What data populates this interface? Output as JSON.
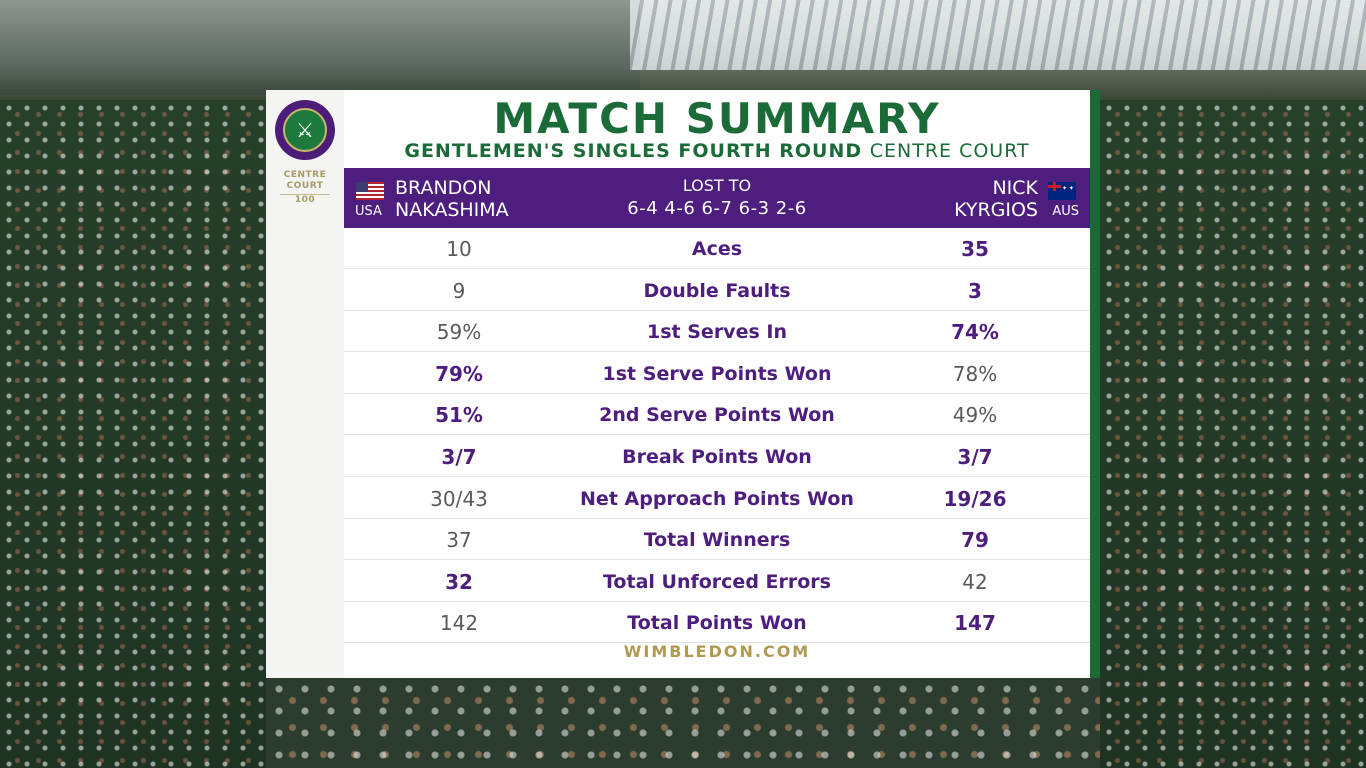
{
  "title": "MATCH SUMMARY",
  "subtitle": {
    "event": "GENTLEMEN'S SINGLES FOURTH ROUND",
    "venue": "CENTRE COURT"
  },
  "branding": {
    "logo_icon": "wimbledon-crossed-rackets-logo",
    "centre_court_line1": "CENTRE",
    "centre_court_line2": "COURT",
    "centre_court_line3": "100"
  },
  "player_left": {
    "first_name": "BRANDON",
    "last_name": "NAKASHIMA",
    "country": "USA",
    "flag_icon": "usa-flag-icon"
  },
  "player_right": {
    "first_name": "NICK",
    "last_name": "KYRGIOS",
    "country": "AUS",
    "flag_icon": "australia-flag-icon"
  },
  "result": {
    "label": "LOST TO",
    "score": "6-4 4-6 6-7 6-3 2-6"
  },
  "stats": [
    {
      "label": "Aces",
      "left": "10",
      "right": "35",
      "left_bold": false,
      "right_bold": true
    },
    {
      "label": "Double Faults",
      "left": "9",
      "right": "3",
      "left_bold": false,
      "right_bold": true
    },
    {
      "label": "1st Serves In",
      "left": "59%",
      "right": "74%",
      "left_bold": false,
      "right_bold": true
    },
    {
      "label": "1st Serve Points Won",
      "left": "79%",
      "right": "78%",
      "left_bold": true,
      "right_bold": false
    },
    {
      "label": "2nd Serve Points Won",
      "left": "51%",
      "right": "49%",
      "left_bold": true,
      "right_bold": false
    },
    {
      "label": "Break Points Won",
      "left": "3/7",
      "right": "3/7",
      "left_bold": true,
      "right_bold": true
    },
    {
      "label": "Net Approach Points Won",
      "left": "30/43",
      "right": "19/26",
      "left_bold": false,
      "right_bold": true
    },
    {
      "label": "Total Winners",
      "left": "37",
      "right": "79",
      "left_bold": false,
      "right_bold": true
    },
    {
      "label": "Total Unforced Errors",
      "left": "32",
      "right": "42",
      "left_bold": true,
      "right_bold": false
    },
    {
      "label": "Total Points Won",
      "left": "142",
      "right": "147",
      "left_bold": false,
      "right_bold": true
    }
  ],
  "footer": "WIMBLEDON.COM",
  "colors": {
    "purple": "#4d1e7e",
    "green": "#1b6b38",
    "gold": "#b09a52"
  }
}
